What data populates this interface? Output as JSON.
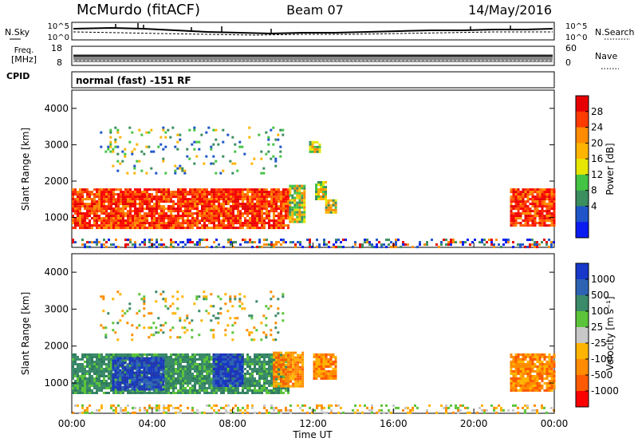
{
  "header": {
    "station": "McMurdo (fitACF)",
    "beam": "Beam 07",
    "date": "14/May/2016"
  },
  "noise_panel": {
    "left_label": "N.Sky",
    "right_label": "N.Search",
    "tick_top": "10^5",
    "tick_bottom": "10^0"
  },
  "freq_panel": {
    "left_label_1": "Freq.",
    "left_label_2": "[MHz]",
    "tick_top": "18",
    "tick_bottom": "8",
    "right_label": "Nave",
    "right_tick_top": "60",
    "right_tick_bottom": "0"
  },
  "cpid_panel": {
    "label": "CPID",
    "text": "normal (fast) -151 RF"
  },
  "power_colorbar": {
    "label": "Power [dB]",
    "ticks": [
      "28",
      "24",
      "20",
      "16",
      "12",
      "8",
      "4"
    ],
    "colors": [
      "#e60000",
      "#ff3b00",
      "#ff8c00",
      "#ffb400",
      "#e6e600",
      "#44c444",
      "#3b8e5e",
      "#1f55c8",
      "#0a1cf0"
    ]
  },
  "velocity_colorbar": {
    "label": "Velocity [m s⁻¹]",
    "ticks": [
      "1000",
      "500",
      "100",
      "25",
      "-25",
      "-100",
      "-500",
      "-1000"
    ],
    "colors": [
      "#1738c8",
      "#2e63b4",
      "#3b8a6a",
      "#5cc43a",
      "#c8c8c8",
      "#ffb400",
      "#ff8c00",
      "#ff5a00",
      "#ff0000"
    ]
  },
  "chart_data": [
    {
      "type": "heatmap",
      "title": "",
      "parameter": "Power",
      "xlabel": "",
      "ylabel": "Slant Range [km]",
      "xlim": [
        0,
        24
      ],
      "ylim": [
        180,
        4500
      ],
      "x_tick_labels": [
        "00:00",
        "04:00",
        "08:00",
        "12:00",
        "16:00",
        "20:00",
        "00:00"
      ],
      "y_tick_labels": [
        "1000",
        "2000",
        "3000",
        "4000"
      ],
      "regions": [
        {
          "t": [
            0.0,
            10.8
          ],
          "r": [
            700,
            1800
          ],
          "level": "high"
        },
        {
          "t": [
            10.8,
            11.6
          ],
          "r": [
            900,
            1900
          ],
          "level": "mid"
        },
        {
          "t": [
            12.1,
            12.6
          ],
          "r": [
            1500,
            2000
          ],
          "level": "mid"
        },
        {
          "t": [
            12.6,
            13.1
          ],
          "r": [
            1150,
            1500
          ],
          "level": "mid"
        },
        {
          "t": [
            21.8,
            24.0
          ],
          "r": [
            800,
            1800
          ],
          "level": "high"
        },
        {
          "t": [
            11.8,
            12.3
          ],
          "r": [
            2800,
            3100
          ],
          "level": "mid"
        },
        {
          "t": [
            1.4,
            10.5
          ],
          "r": [
            2200,
            3500
          ],
          "level": "sparse"
        },
        {
          "t": [
            0.0,
            24.0
          ],
          "r": [
            180,
            420
          ],
          "level": "noise"
        }
      ]
    },
    {
      "type": "heatmap",
      "title": "",
      "parameter": "Velocity",
      "xlabel": "Time UT",
      "ylabel": "Slant Range [km]",
      "xlim": [
        0,
        24
      ],
      "ylim": [
        180,
        4500
      ],
      "x_tick_labels": [
        "00:00",
        "04:00",
        "08:00",
        "12:00",
        "16:00",
        "20:00",
        "00:00"
      ],
      "y_tick_labels": [
        "1000",
        "2000",
        "3000",
        "4000"
      ],
      "regions": [
        {
          "t": [
            0.0,
            10.8
          ],
          "r": [
            700,
            1800
          ],
          "level": "100 to 500"
        },
        {
          "t": [
            2.0,
            4.5
          ],
          "r": [
            850,
            1700
          ],
          "level": "500 to 1000"
        },
        {
          "t": [
            7.0,
            8.5
          ],
          "r": [
            900,
            1800
          ],
          "level": "500 to 1000"
        },
        {
          "t": [
            10.0,
            11.5
          ],
          "r": [
            900,
            1850
          ],
          "level": "-100 to -500"
        },
        {
          "t": [
            12.0,
            13.1
          ],
          "r": [
            1150,
            1800
          ],
          "level": "-100 to -500"
        },
        {
          "t": [
            21.8,
            24.0
          ],
          "r": [
            800,
            1800
          ],
          "level": "-100 to -500"
        },
        {
          "t": [
            1.4,
            10.5
          ],
          "r": [
            2200,
            3500
          ],
          "level": "sparse"
        },
        {
          "t": [
            0.0,
            24.0
          ],
          "r": [
            180,
            420
          ],
          "level": "noise"
        }
      ]
    }
  ]
}
